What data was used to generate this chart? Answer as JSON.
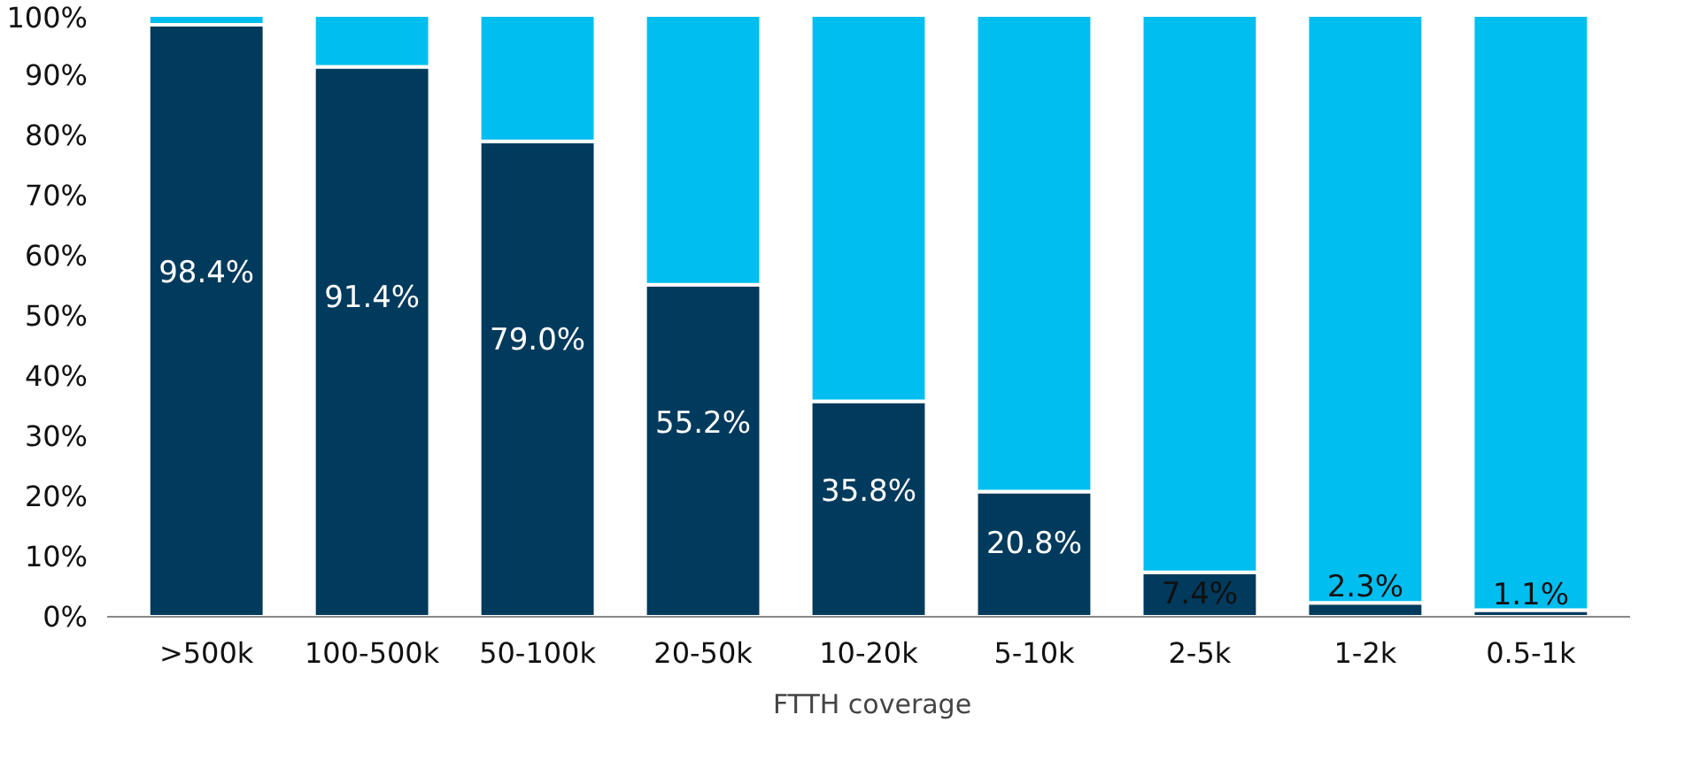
{
  "chart_data": {
    "type": "bar",
    "stacked": true,
    "categories": [
      ">500k",
      "100-500k",
      "50-100k",
      "20-50k",
      "10-20k",
      "5-10k",
      "2-5k",
      "1-2k",
      "0.5-1k"
    ],
    "series": [
      {
        "name": "FTTH coverage",
        "color": "#003a5c",
        "values": [
          98.4,
          91.4,
          79.0,
          55.2,
          35.8,
          20.8,
          7.4,
          2.3,
          1.1
        ],
        "value_labels": [
          "98.4%",
          "91.4%",
          "79.0%",
          "55.2%",
          "35.8%",
          "20.8%",
          "7.4%",
          "2.3%",
          "1.1%"
        ]
      },
      {
        "color": "#00bef0",
        "values": [
          1.6,
          8.6,
          21.0,
          44.8,
          64.2,
          79.2,
          92.6,
          97.7,
          98.9
        ]
      }
    ],
    "ylim": [
      0,
      100
    ],
    "yticks": [
      {
        "value": 0,
        "label": "0%"
      },
      {
        "value": 10,
        "label": "10%"
      },
      {
        "value": 20,
        "label": "20%"
      },
      {
        "value": 30,
        "label": "30%"
      },
      {
        "value": 40,
        "label": "40%"
      },
      {
        "value": 50,
        "label": "50%"
      },
      {
        "value": 60,
        "label": "60%"
      },
      {
        "value": 70,
        "label": "70%"
      },
      {
        "value": 80,
        "label": "80%"
      },
      {
        "value": 90,
        "label": "90%"
      },
      {
        "value": 100,
        "label": "100%"
      }
    ],
    "grid": false,
    "legend": "bottom"
  }
}
